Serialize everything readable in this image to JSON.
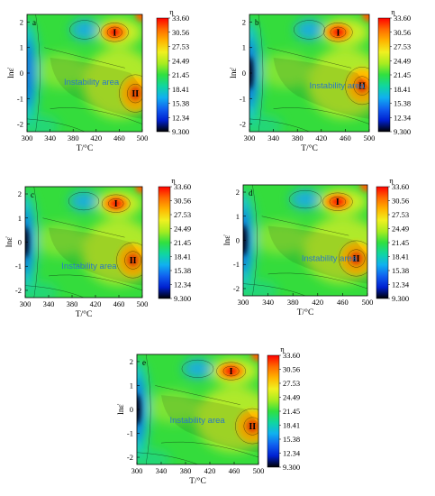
{
  "chart_data": {
    "type": "heatmap",
    "xlabel": "T/°C",
    "ylabel": "lnε̇",
    "x_ticks": [
      "300",
      "340",
      "380",
      "420",
      "460",
      "500"
    ],
    "y_ticks": [
      "2",
      "1",
      "0",
      "-1",
      "-2"
    ],
    "xlim": [
      300,
      500
    ],
    "ylim": [
      -2.3,
      2.3
    ],
    "colorbar": {
      "title": "η",
      "min": 9.3,
      "max": 33.6,
      "labels": [
        "33.60",
        "30.56",
        "27.53",
        "24.49",
        "21.45",
        "18.41",
        "15.38",
        "12.34",
        "9.300"
      ],
      "colors": [
        "#ff0000",
        "#ff6a00",
        "#ffb400",
        "#f0f020",
        "#a8ec20",
        "#30e040",
        "#10d6a0",
        "#10b0f0",
        "#1060f0",
        "#0020d0",
        "#000000"
      ]
    },
    "panels": [
      {
        "label": "a",
        "region_I": "I",
        "region_II": "II",
        "instability_label": "Instability area",
        "region_I_at": [
          452,
          1.6
        ],
        "region_II_at": [
          488,
          -0.8
        ],
        "instability_at": [
          364,
          -0.35
        ]
      },
      {
        "label": "b",
        "region_I": "I",
        "region_II": "II",
        "instability_label": "Instability area",
        "region_I_at": [
          448,
          1.6
        ],
        "region_II_at": [
          488,
          -0.5
        ],
        "instability_at": [
          400,
          -0.5
        ]
      },
      {
        "label": "c",
        "region_I": "I",
        "region_II": "II",
        "instability_label": "Instability area",
        "region_I_at": [
          455,
          1.6
        ],
        "region_II_at": [
          484,
          -0.75
        ],
        "instability_at": [
          362,
          -1.0
        ]
      },
      {
        "label": "d",
        "region_I": "I",
        "region_II": "II",
        "instability_label": "Instability area",
        "region_I_at": [
          452,
          1.6
        ],
        "region_II_at": [
          482,
          -0.75
        ],
        "instability_at": [
          394,
          -0.75
        ]
      },
      {
        "label": "e",
        "region_I": "I",
        "region_II": "II",
        "instability_label": "Instability area",
        "region_I_at": [
          455,
          1.6
        ],
        "region_II_at": [
          490,
          -0.7
        ],
        "instability_at": [
          354,
          -0.45
        ]
      }
    ]
  }
}
